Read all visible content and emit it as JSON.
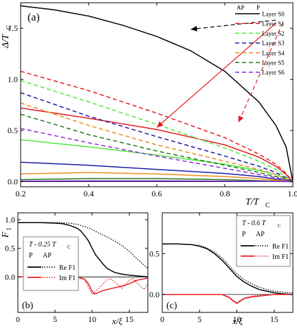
{
  "chart_data": [
    {
      "type": "line",
      "panel_label": "(a)",
      "xlabel": "T/T",
      "xlabel_sub": "C",
      "ylabel": "Δ/T",
      "ylabel_sub": "C",
      "xlim": [
        0.2,
        1.0
      ],
      "ylim": [
        -0.05,
        1.75
      ],
      "xticks": [
        0.2,
        0.4,
        0.6,
        0.8,
        1.0
      ],
      "xticklabels": [
        "0.2",
        "0.4",
        "0.6",
        "0.8",
        "1.0"
      ],
      "yticks": [
        0.0,
        0.5,
        1.0,
        1.5
      ],
      "yticklabels": [
        "0.0",
        "0.5",
        "1.0",
        "1.5"
      ],
      "legend_header": [
        "AP",
        "P"
      ],
      "legend_placement": "top-right",
      "colors": {
        "S0": "#000000",
        "S1": "#e8191f",
        "S2": "#4ee83a",
        "S3": "#1a1aa8",
        "S4": "#f08a1e",
        "S5": "#1a7a1a",
        "S6": "#8a2be2"
      },
      "series": [
        {
          "name": "Layer S0",
          "color": "#000000",
          "style": "solid",
          "x": [
            0.0,
            0.2,
            0.3,
            0.4,
            0.5,
            0.6,
            0.7,
            0.8,
            0.9,
            0.95,
            0.98,
            1.0
          ],
          "y": [
            1.76,
            1.72,
            1.68,
            1.62,
            1.53,
            1.42,
            1.28,
            1.08,
            0.78,
            0.55,
            0.34,
            0.0
          ]
        },
        {
          "name": "Layer S1",
          "color": "#e8191f",
          "style": "dashed",
          "x": [
            0.2,
            0.4,
            0.6,
            0.8,
            0.9,
            0.95,
            0.98,
            1.0
          ],
          "y": [
            1.08,
            0.89,
            0.67,
            0.43,
            0.27,
            0.17,
            0.08,
            0.0
          ]
        },
        {
          "name": "Layer S1 (P)",
          "color": "#e8191f",
          "style": "solid",
          "x": [
            0.2,
            0.4,
            0.6,
            0.8,
            0.9,
            0.95,
            0.98,
            1.0
          ],
          "y": [
            0.72,
            0.62,
            0.51,
            0.36,
            0.24,
            0.15,
            0.07,
            0.0
          ]
        },
        {
          "name": "Layer S2",
          "color": "#4ee83a",
          "style": "dashed",
          "x": [
            0.2,
            0.4,
            0.6,
            0.8,
            0.9,
            0.95,
            1.0
          ],
          "y": [
            0.99,
            0.78,
            0.56,
            0.33,
            0.2,
            0.12,
            0.0
          ]
        },
        {
          "name": "Layer S2 (P)",
          "color": "#4ee83a",
          "style": "solid",
          "x": [
            0.2,
            0.4,
            0.6,
            0.8,
            0.9,
            0.95,
            1.0
          ],
          "y": [
            0.41,
            0.34,
            0.26,
            0.17,
            0.11,
            0.07,
            0.0
          ]
        },
        {
          "name": "Layer S3",
          "color": "#1a1aa8",
          "style": "dashed",
          "x": [
            0.2,
            0.4,
            0.6,
            0.8,
            0.9,
            0.95,
            1.0
          ],
          "y": [
            0.87,
            0.64,
            0.44,
            0.25,
            0.15,
            0.09,
            0.0
          ]
        },
        {
          "name": "Layer S3 (P)",
          "color": "#1a1aa8",
          "style": "solid",
          "x": [
            0.2,
            0.4,
            0.6,
            0.8,
            0.9,
            1.0
          ],
          "y": [
            0.19,
            0.16,
            0.12,
            0.08,
            0.05,
            0.0
          ]
        },
        {
          "name": "Layer S4",
          "color": "#f08a1e",
          "style": "dashed",
          "x": [
            0.2,
            0.4,
            0.6,
            0.8,
            0.9,
            0.95,
            1.0
          ],
          "y": [
            0.77,
            0.55,
            0.36,
            0.2,
            0.12,
            0.07,
            0.0
          ]
        },
        {
          "name": "Layer S4 (P)",
          "color": "#f08a1e",
          "style": "solid",
          "x": [
            0.2,
            0.4,
            0.6,
            0.8,
            0.9,
            1.0
          ],
          "y": [
            0.075,
            0.09,
            0.075,
            0.05,
            0.03,
            0.0
          ]
        },
        {
          "name": "Layer S5",
          "color": "#1a7a1a",
          "style": "dashed",
          "x": [
            0.2,
            0.4,
            0.6,
            0.8,
            0.9,
            0.95,
            1.0
          ],
          "y": [
            0.66,
            0.46,
            0.3,
            0.16,
            0.09,
            0.05,
            0.0
          ]
        },
        {
          "name": "Layer S5 (P)",
          "color": "#1a7a1a",
          "style": "solid",
          "x": [
            0.2,
            0.4,
            0.6,
            0.8,
            0.9,
            1.0
          ],
          "y": [
            0.02,
            0.03,
            0.03,
            0.02,
            0.01,
            0.0
          ]
        },
        {
          "name": "Layer S6",
          "color": "#8a2be2",
          "style": "dashed",
          "x": [
            0.2,
            0.4,
            0.6,
            0.8,
            0.9,
            0.95,
            1.0
          ],
          "y": [
            0.52,
            0.38,
            0.25,
            0.13,
            0.07,
            0.04,
            0.0
          ]
        },
        {
          "name": "Layer S6 (P)",
          "color": "#8a2be2",
          "style": "solid",
          "x": [
            0.2,
            0.4,
            0.6,
            0.8,
            0.9,
            1.0
          ],
          "y": [
            0.005,
            0.008,
            0.008,
            0.005,
            0.003,
            0.0
          ]
        }
      ],
      "arrows": [
        {
          "from": [
            0.95,
            1.58
          ],
          "to": [
            0.7,
            1.49
          ],
          "color": "#000000",
          "style": "dashed"
        },
        {
          "from": [
            0.95,
            1.55
          ],
          "to": [
            0.6,
            0.53
          ],
          "color": "#e8191f",
          "style": "solid"
        },
        {
          "from": [
            0.97,
            1.55
          ],
          "to": [
            0.84,
            0.58
          ],
          "color": "#e8191f",
          "style": "dashed"
        }
      ]
    },
    {
      "type": "line",
      "panel_label": "(b)",
      "xlabel": "x/ξ",
      "ylabel": "F",
      "ylabel_sub": "1",
      "xlim": [
        0,
        17.5
      ],
      "ylim": [
        -0.62,
        1.12
      ],
      "xticks": [
        0,
        5,
        10,
        15
      ],
      "xticklabels": [
        "0",
        "5",
        "10",
        "15"
      ],
      "yticks": [
        0.0,
        0.5,
        1.0
      ],
      "yticklabels": [
        "0.0",
        "0.5",
        "1.0"
      ],
      "legend_title": "T - 0.25 T",
      "legend_title_sub": "C",
      "legend_header": [
        "P",
        "AP"
      ],
      "legend_placement": "center-left",
      "series": [
        {
          "name": "Re F1",
          "role": "P",
          "color": "#000000",
          "style": "solid",
          "x": [
            0,
            3,
            5,
            6,
            7,
            8,
            8.5,
            9,
            9.5,
            10,
            10.5,
            11,
            11.5,
            12,
            13,
            14,
            15,
            16,
            17.5
          ],
          "y": [
            0.95,
            0.95,
            0.94,
            0.93,
            0.9,
            0.85,
            0.8,
            0.72,
            0.63,
            0.5,
            0.38,
            0.3,
            0.22,
            0.15,
            0.08,
            0.05,
            0.03,
            0.02,
            0.0
          ]
        },
        {
          "name": "Re F1",
          "role": "AP",
          "color": "#000000",
          "style": "dotted",
          "x": [
            0,
            3,
            5,
            7,
            8,
            9,
            10,
            11,
            12,
            13,
            14,
            15,
            16,
            17.5
          ],
          "y": [
            0.95,
            0.95,
            0.95,
            0.94,
            0.92,
            0.88,
            0.83,
            0.76,
            0.7,
            0.63,
            0.55,
            0.45,
            0.32,
            0.15
          ]
        },
        {
          "name": "Im F1",
          "role": "P",
          "color": "#e8191f",
          "style": "solid",
          "x": [
            0,
            5,
            8,
            9,
            9.5,
            10,
            10.3,
            10.7,
            11.2,
            12,
            13,
            14,
            15,
            16,
            17.5
          ],
          "y": [
            0.0,
            0.0,
            0.0,
            -0.04,
            -0.12,
            -0.25,
            -0.3,
            -0.28,
            -0.25,
            -0.22,
            -0.19,
            -0.16,
            -0.12,
            -0.06,
            -0.02
          ]
        },
        {
          "name": "Im F1",
          "role": "AP",
          "color": "#e8191f",
          "style": "dotted",
          "x": [
            0,
            5,
            8,
            9,
            9.5,
            10,
            10.5,
            11,
            12,
            12.5,
            13,
            14,
            15,
            15.5,
            16,
            17,
            17.5
          ],
          "y": [
            0.0,
            0.0,
            0.0,
            -0.05,
            -0.18,
            -0.3,
            -0.25,
            -0.18,
            -0.05,
            -0.03,
            -0.08,
            -0.2,
            -0.06,
            -0.03,
            -0.1,
            -0.22,
            -0.12
          ]
        }
      ]
    },
    {
      "type": "line",
      "panel_label": "(c)",
      "xlabel": "x/ξ",
      "xlim": [
        0,
        17.5
      ],
      "ylim": [
        -0.22,
        1.0
      ],
      "xticks": [
        0,
        5,
        10,
        15
      ],
      "xticklabels": [
        "0",
        "5",
        "10",
        "15"
      ],
      "yticks": [
        0.0,
        0.5
      ],
      "yticklabels": [
        "0.0",
        "0.5"
      ],
      "legend_title": "T - 0.6 T",
      "legend_title_sub": "C",
      "legend_header": [
        "P",
        "AP"
      ],
      "legend_placement": "top-right",
      "series": [
        {
          "name": "Re F1",
          "role": "P",
          "color": "#000000",
          "style": "solid",
          "x": [
            0,
            2,
            4,
            5,
            6,
            7,
            8,
            9,
            10,
            11,
            12,
            13,
            14,
            15,
            16,
            17.5
          ],
          "y": [
            0.62,
            0.62,
            0.61,
            0.59,
            0.56,
            0.5,
            0.42,
            0.32,
            0.22,
            0.15,
            0.1,
            0.06,
            0.04,
            0.02,
            0.01,
            0.0
          ]
        },
        {
          "name": "Re F1",
          "role": "AP",
          "color": "#000000",
          "style": "dotted",
          "x": [
            0,
            2,
            4,
            5,
            6,
            7,
            8,
            9,
            10,
            11,
            12,
            13,
            14,
            15,
            16,
            17.5
          ],
          "y": [
            0.62,
            0.62,
            0.61,
            0.6,
            0.57,
            0.52,
            0.45,
            0.35,
            0.25,
            0.18,
            0.13,
            0.09,
            0.06,
            0.04,
            0.03,
            0.02
          ]
        },
        {
          "name": "Im F1",
          "role": "P",
          "color": "#e8191f",
          "style": "solid",
          "x": [
            0,
            5,
            8,
            9,
            9.5,
            10,
            10.5,
            11,
            12,
            13,
            14,
            15,
            17.5
          ],
          "y": [
            0.0,
            0.0,
            0.0,
            -0.04,
            -0.08,
            -0.11,
            -0.08,
            -0.05,
            -0.03,
            -0.02,
            -0.01,
            0.0,
            0.0
          ]
        },
        {
          "name": "Im F1",
          "role": "AP",
          "color": "#e8191f",
          "style": "dotted",
          "x": [
            0,
            5,
            8,
            9,
            9.5,
            10,
            10.5,
            11,
            12,
            13,
            14,
            15,
            17.5
          ],
          "y": [
            0.0,
            0.0,
            0.0,
            -0.03,
            -0.07,
            -0.1,
            -0.07,
            -0.04,
            -0.02,
            -0.01,
            -0.01,
            0.0,
            0.0
          ]
        }
      ]
    }
  ]
}
